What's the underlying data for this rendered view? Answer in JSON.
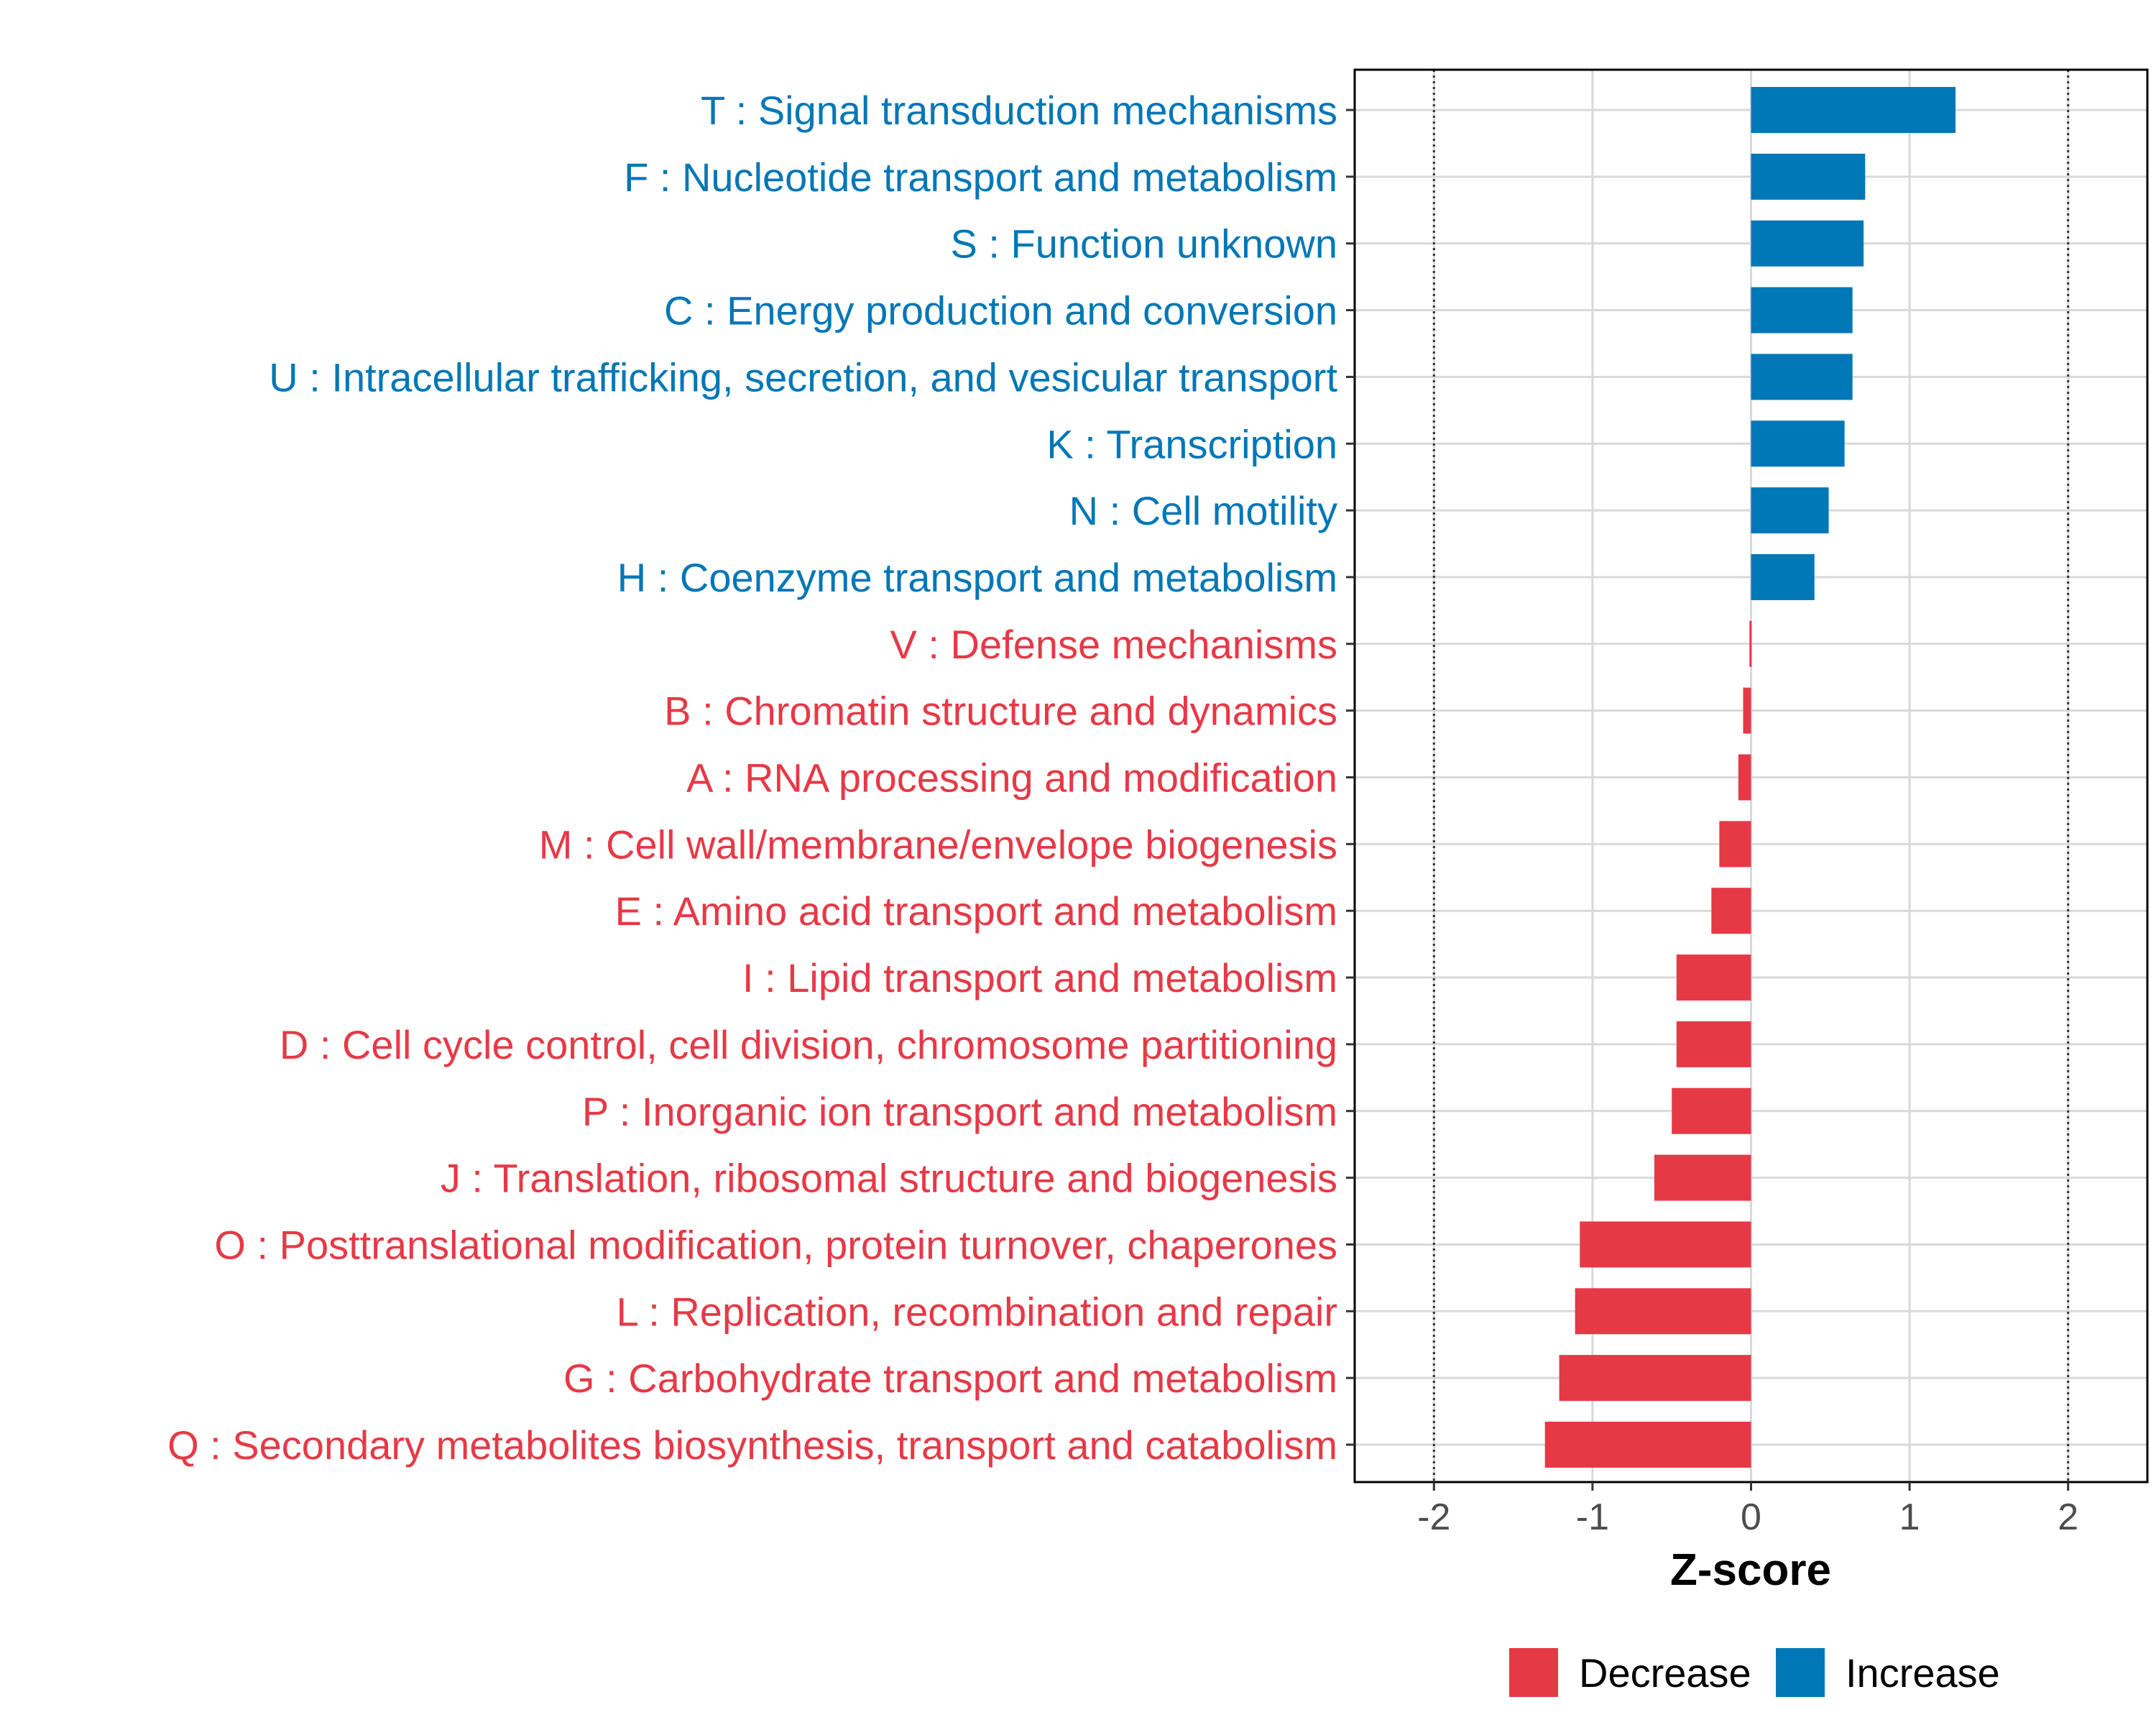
{
  "chart_data": {
    "type": "bar",
    "orientation": "horizontal",
    "title": "",
    "xlabel": "Z-score",
    "ylabel": "",
    "xlim": [
      -2.5,
      2.5
    ],
    "xticks": [
      "-2",
      "-1",
      "0",
      "1",
      "2"
    ],
    "reference_lines": [
      -2,
      2
    ],
    "grid": true,
    "legend_position": "bottom",
    "colors": {
      "Decrease": "#E63946",
      "Increase": "#0077B6"
    },
    "legend": [
      {
        "name": "Decrease",
        "color": "#E63946"
      },
      {
        "name": "Increase",
        "color": "#0077B6"
      }
    ],
    "categories": [
      "T : Signal transduction mechanisms",
      "F : Nucleotide transport and metabolism",
      "S : Function unknown",
      "C : Energy production and conversion",
      "U : Intracellular trafficking, secretion, and vesicular transport",
      "K : Transcription",
      "N : Cell motility",
      "H : Coenzyme transport and metabolism",
      "V : Defense mechanisms",
      "B : Chromatin structure and dynamics",
      "A : RNA processing and modification",
      "M : Cell wall/membrane/envelope biogenesis",
      "E : Amino acid transport and metabolism",
      "I : Lipid transport and metabolism",
      "D : Cell cycle control, cell division, chromosome partitioning",
      "P : Inorganic ion transport and metabolism",
      "J : Translation, ribosomal structure and biogenesis",
      "O : Posttranslational modification, protein turnover, chaperones",
      "L : Replication, recombination and repair",
      "G : Carbohydrate transport and metabolism",
      "Q : Secondary metabolites biosynthesis, transport and catabolism"
    ],
    "values": [
      1.29,
      0.72,
      0.71,
      0.64,
      0.64,
      0.59,
      0.49,
      0.4,
      -0.01,
      -0.05,
      -0.08,
      -0.2,
      -0.25,
      -0.47,
      -0.47,
      -0.5,
      -0.61,
      -1.08,
      -1.11,
      -1.21,
      -1.3
    ],
    "groups": [
      "Increase",
      "Increase",
      "Increase",
      "Increase",
      "Increase",
      "Increase",
      "Increase",
      "Increase",
      "Decrease",
      "Decrease",
      "Decrease",
      "Decrease",
      "Decrease",
      "Decrease",
      "Decrease",
      "Decrease",
      "Decrease",
      "Decrease",
      "Decrease",
      "Decrease",
      "Decrease"
    ]
  }
}
